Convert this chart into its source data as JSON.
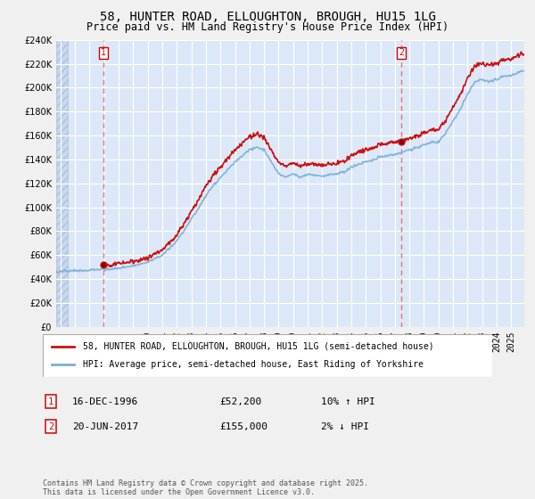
{
  "title": "58, HUNTER ROAD, ELLOUGHTON, BROUGH, HU15 1LG",
  "subtitle": "Price paid vs. HM Land Registry's House Price Index (HPI)",
  "ylim": [
    0,
    240000
  ],
  "yticks": [
    0,
    20000,
    40000,
    60000,
    80000,
    100000,
    120000,
    140000,
    160000,
    180000,
    200000,
    220000,
    240000
  ],
  "sale1_year": 1996.958,
  "sale1_price": 52200,
  "sale1_label": "16-DEC-1996",
  "sale1_hpi": "10% ↑ HPI",
  "sale2_year": 2017.458,
  "sale2_price": 155000,
  "sale2_label": "20-JUN-2017",
  "sale2_hpi": "2% ↓ HPI",
  "hpi_color": "#7aaed6",
  "price_color": "#cc1111",
  "dashed_color": "#e87070",
  "bg_plot": "#dce8f8",
  "bg_hatch": "#c8d8ee",
  "grid_color": "#ffffff",
  "xlim_left": 1993.7,
  "xlim_right": 2025.9,
  "legend_label_price": "58, HUNTER ROAD, ELLOUGHTON, BROUGH, HU15 1LG (semi-detached house)",
  "legend_label_hpi": "HPI: Average price, semi-detached house, East Riding of Yorkshire",
  "footnote": "Contains HM Land Registry data © Crown copyright and database right 2025.\nThis data is licensed under the Open Government Licence v3.0.",
  "title_fontsize": 10,
  "subtitle_fontsize": 8.5,
  "tick_fontsize": 7,
  "legend_fontsize": 7,
  "footnote_fontsize": 6
}
